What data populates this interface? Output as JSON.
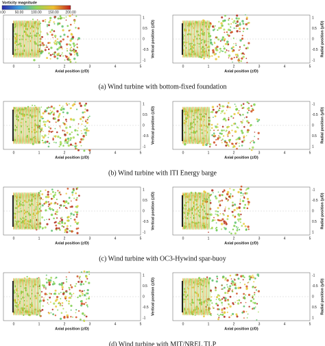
{
  "colorbar": {
    "title": "Vorticity magnitude",
    "ticks": [
      "0.00",
      "50.00",
      "100.00",
      "150.00",
      "200.00"
    ]
  },
  "panels": [
    {
      "caption": "(a) Wind turbine with bottom-fixed foundation",
      "plots": [
        {
          "xlabel": "Axial position (z/D)",
          "ylabel": "Vertical position (z/D)",
          "xticks": [
            "0",
            "1",
            "2",
            "3",
            "4",
            "5"
          ],
          "yticks": [
            "1",
            "0.5",
            "0",
            "-0.5",
            "-1"
          ]
        },
        {
          "xlabel": "Axial position (z/D)",
          "ylabel": "Radial position (y/D)",
          "xticks": [
            "0",
            "1",
            "2",
            "3",
            "4",
            "5"
          ],
          "yticks": [
            "1",
            "0.5",
            "0",
            "-0.5",
            "-1"
          ]
        }
      ]
    },
    {
      "caption": "(b) Wind turbine with ITI Energy barge",
      "plots": [
        {
          "xlabel": "Axial position (z/D)",
          "ylabel": "Vertical position (z/D)",
          "xticks": [
            "0",
            "1",
            "2",
            "3",
            "4",
            "5"
          ],
          "yticks": [
            "1",
            "0.5",
            "0",
            "-0.5",
            "-1"
          ]
        },
        {
          "xlabel": "Axial position (z/D)",
          "ylabel": "Radial position (y/D)",
          "xticks": [
            "0",
            "1",
            "2",
            "3",
            "4",
            "5"
          ],
          "yticks": [
            "-1",
            "-0.5",
            "0",
            "0.5",
            "1"
          ]
        }
      ]
    },
    {
      "caption": "(c) Wind turbine with OC3-Hywind spar-buoy",
      "plots": [
        {
          "xlabel": "Axial position (z/D)",
          "ylabel": "Vertical position (z/D)",
          "xticks": [
            "0",
            "1",
            "2",
            "3",
            "4",
            "5"
          ],
          "yticks": [
            "1",
            "0.5",
            "0",
            "-0.5",
            "-1"
          ]
        },
        {
          "xlabel": "Axial position (z/D)",
          "ylabel": "Radial position (y/D)",
          "xticks": [
            "0",
            "1",
            "2",
            "3",
            "4",
            "5"
          ],
          "yticks": [
            "-1",
            "-0.5",
            "0",
            "0.5",
            "1"
          ]
        }
      ]
    },
    {
      "caption": "(d) Wind turbine with MIT/NREL TLP",
      "plots": [
        {
          "xlabel": "Axial position (z/D)",
          "ylabel": "Vertical position (z/D)",
          "xticks": [
            "0",
            "1",
            "2",
            "3",
            "4",
            "5"
          ],
          "yticks": [
            "1",
            "0.5",
            "0",
            "-0.5",
            "-1"
          ]
        },
        {
          "xlabel": "Axial position (z/D)",
          "ylabel": "Radial position (y/D)",
          "xticks": [
            "0",
            "1",
            "2",
            "3",
            "4",
            "5"
          ],
          "yticks": [
            "-1",
            "-0.5",
            "0",
            "0.5",
            "1"
          ]
        }
      ]
    }
  ]
}
